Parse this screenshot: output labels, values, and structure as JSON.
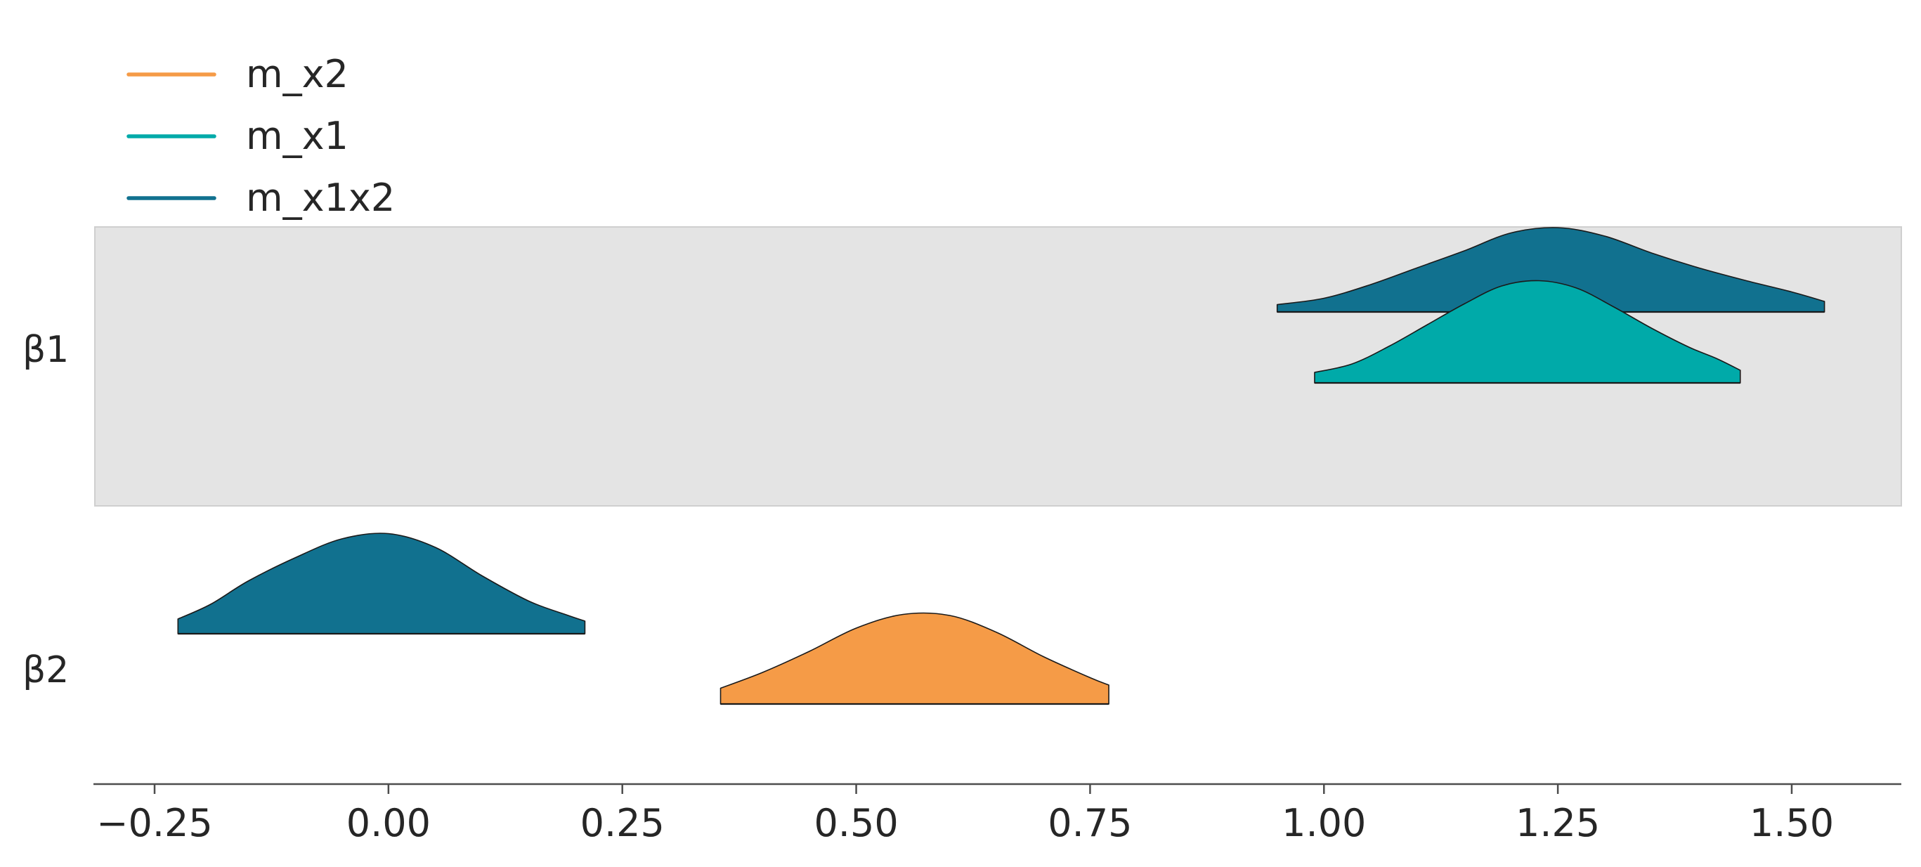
{
  "chart_data": {
    "type": "ridgeplot",
    "title": "",
    "xlabel": "",
    "ylabel": "",
    "xlim": [
      -0.315,
      1.625
    ],
    "xticks": [
      -0.25,
      0.0,
      0.25,
      0.5,
      0.75,
      1.0,
      1.25,
      1.5
    ],
    "xtick_labels": [
      "−0.25",
      "0.00",
      "0.25",
      "0.50",
      "0.75",
      "1.00",
      "1.25",
      "1.50"
    ],
    "grid": false,
    "legend_position": "top-left",
    "highlight_row": "β1",
    "highlight_color": "#e4e4e4",
    "edge_color": "#1a1a1a",
    "rows": [
      {
        "label": "β1",
        "densities": [
          {
            "series": "m_x1x2",
            "x": [
              0.95,
              1.0,
              1.05,
              1.1,
              1.15,
              1.2,
              1.25,
              1.3,
              1.35,
              1.4,
              1.45,
              1.5,
              1.535
            ],
            "density": [
              0.07,
              0.13,
              0.26,
              0.42,
              0.58,
              0.75,
              0.8,
              0.72,
              0.56,
              0.42,
              0.3,
              0.19,
              0.1
            ]
          },
          {
            "series": "m_x1",
            "x": [
              0.99,
              1.03,
              1.07,
              1.11,
              1.15,
              1.19,
              1.23,
              1.27,
              1.31,
              1.35,
              1.39,
              1.42,
              1.445
            ],
            "density": [
              0.1,
              0.18,
              0.35,
              0.55,
              0.75,
              0.92,
              0.97,
              0.9,
              0.72,
              0.52,
              0.34,
              0.23,
              0.12
            ]
          }
        ]
      },
      {
        "label": "β2",
        "densities": [
          {
            "series": "m_x1x2",
            "x": [
              -0.225,
              -0.19,
              -0.15,
              -0.1,
              -0.05,
              0.0,
              0.05,
              0.1,
              0.15,
              0.19,
              0.21
            ],
            "density": [
              0.14,
              0.28,
              0.5,
              0.72,
              0.9,
              0.95,
              0.82,
              0.55,
              0.31,
              0.18,
              0.12
            ]
          },
          {
            "series": "m_x2",
            "x": [
              0.355,
              0.4,
              0.45,
              0.5,
              0.55,
              0.6,
              0.65,
              0.7,
              0.75,
              0.77
            ],
            "density": [
              0.15,
              0.3,
              0.5,
              0.72,
              0.85,
              0.84,
              0.68,
              0.45,
              0.25,
              0.18
            ]
          }
        ]
      }
    ],
    "series": [
      {
        "name": "m_x2",
        "color": "#f59b47"
      },
      {
        "name": "m_x1",
        "color": "#00aaa9"
      },
      {
        "name": "m_x1x2",
        "color": "#11718f"
      }
    ]
  }
}
